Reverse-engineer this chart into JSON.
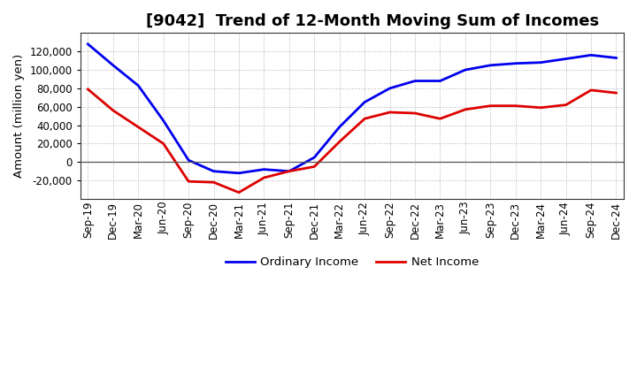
{
  "title": "[9042]  Trend of 12-Month Moving Sum of Incomes",
  "ylabel": "Amount (million yen)",
  "background_color": "#ffffff",
  "grid_color": "#b0b0b0",
  "x_labels": [
    "Sep-19",
    "Dec-19",
    "Mar-20",
    "Jun-20",
    "Sep-20",
    "Dec-20",
    "Mar-21",
    "Jun-21",
    "Sep-21",
    "Dec-21",
    "Mar-22",
    "Jun-22",
    "Sep-22",
    "Dec-22",
    "Mar-23",
    "Jun-23",
    "Sep-23",
    "Dec-23",
    "Mar-24",
    "Jun-24",
    "Sep-24",
    "Dec-24"
  ],
  "ordinary_income": [
    128000,
    105000,
    83000,
    45000,
    2000,
    -10000,
    -12000,
    -8000,
    -10000,
    5000,
    38000,
    65000,
    80000,
    88000,
    88000,
    100000,
    105000,
    107000,
    108000,
    112000,
    116000,
    113000
  ],
  "net_income": [
    79000,
    56000,
    38000,
    20000,
    -21000,
    -22000,
    -33000,
    -17000,
    -10000,
    -5000,
    22000,
    47000,
    54000,
    53000,
    47000,
    57000,
    61000,
    61000,
    59000,
    62000,
    78000,
    75000
  ],
  "ordinary_color": "#0000ee",
  "net_color": "#dd0000",
  "line_width": 2.0,
  "ylim": [
    -40000,
    140000
  ],
  "yticks": [
    -20000,
    0,
    20000,
    40000,
    60000,
    80000,
    100000,
    120000
  ],
  "legend_labels": [
    "Ordinary Income",
    "Net Income"
  ],
  "title_fontsize": 13,
  "axis_fontsize": 9.5,
  "tick_fontsize": 8.5
}
